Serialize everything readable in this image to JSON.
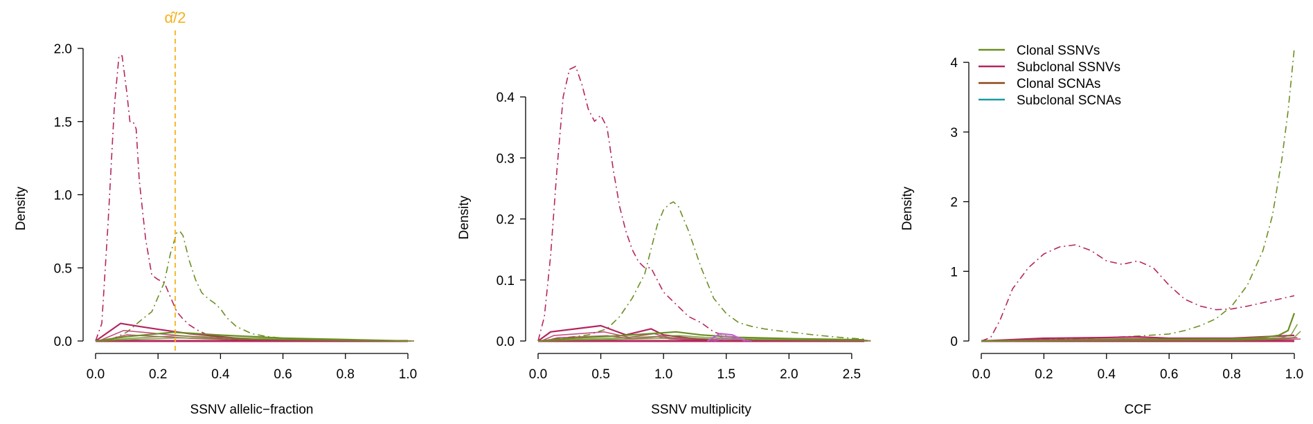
{
  "colors": {
    "clonal_ssnv": "#6b8e23",
    "subclonal_ssnv": "#b5245e",
    "clonal_scna": "#8b4513",
    "subclonal_scna": "#1a9aa0",
    "annotation": "#f5b21b",
    "extra_magenta": "#c060d0"
  },
  "legend": {
    "placement": "top-left of third panel",
    "items": [
      {
        "label": "Clonal SSNVs",
        "color_key": "clonal_ssnv"
      },
      {
        "label": "Subclonal SSNVs",
        "color_key": "subclonal_ssnv"
      },
      {
        "label": "Clonal SCNAs",
        "color_key": "clonal_scna"
      },
      {
        "label": "Subclonal SCNAs",
        "color_key": "subclonal_scna"
      }
    ]
  },
  "chart_data": [
    {
      "type": "line",
      "title": "",
      "xlabel": "SSNV allelic−fraction",
      "ylabel": "Density",
      "xlim": [
        0,
        1
      ],
      "ylim": [
        0,
        2.0
      ],
      "xticks": [
        0.0,
        0.2,
        0.4,
        0.6,
        0.8,
        1.0
      ],
      "xtick_labels": [
        "0.0",
        "0.2",
        "0.4",
        "0.6",
        "0.8",
        "1.0"
      ],
      "yticks": [
        0.0,
        0.5,
        1.0,
        1.5,
        2.0
      ],
      "ytick_labels": [
        "0.0",
        "0.5",
        "1.0",
        "1.5",
        "2.0"
      ],
      "annotation": {
        "label": "α̂/2",
        "x": 0.255
      },
      "series": [
        {
          "color_key": "subclonal_ssnv",
          "style": "dashdot",
          "x": [
            0.0,
            0.02,
            0.04,
            0.06,
            0.075,
            0.085,
            0.1,
            0.11,
            0.12,
            0.13,
            0.14,
            0.16,
            0.18,
            0.2,
            0.22,
            0.24,
            0.26,
            0.28,
            0.3,
            0.33,
            0.36,
            0.4,
            0.45,
            0.5,
            0.6,
            0.7,
            0.8,
            1.0
          ],
          "y": [
            0.0,
            0.12,
            0.8,
            1.6,
            1.95,
            1.95,
            1.7,
            1.5,
            1.5,
            1.45,
            1.1,
            0.7,
            0.45,
            0.42,
            0.4,
            0.3,
            0.2,
            0.15,
            0.11,
            0.07,
            0.04,
            0.02,
            0.01,
            0.0,
            0.0,
            0.0,
            0.0,
            0.0
          ]
        },
        {
          "color_key": "clonal_ssnv",
          "style": "dashdot",
          "x": [
            0.0,
            0.05,
            0.1,
            0.15,
            0.18,
            0.2,
            0.22,
            0.24,
            0.26,
            0.27,
            0.28,
            0.3,
            0.32,
            0.34,
            0.36,
            0.38,
            0.4,
            0.42,
            0.45,
            0.5,
            0.55,
            0.6,
            0.7,
            0.8,
            0.9,
            1.0
          ],
          "y": [
            0.0,
            0.01,
            0.06,
            0.15,
            0.2,
            0.3,
            0.4,
            0.6,
            0.74,
            0.75,
            0.72,
            0.55,
            0.42,
            0.33,
            0.29,
            0.26,
            0.22,
            0.16,
            0.1,
            0.05,
            0.03,
            0.02,
            0.01,
            0.005,
            0.0,
            0.0
          ]
        },
        {
          "color_key": "subclonal_ssnv",
          "style": "solid-band",
          "x": [
            0.0,
            0.08,
            0.14,
            0.2,
            0.3,
            0.4,
            0.5,
            1.0
          ],
          "y": [
            0.0,
            0.12,
            0.1,
            0.08,
            0.05,
            0.03,
            0.01,
            0.0
          ]
        },
        {
          "color_key": "clonal_ssnv",
          "style": "solid-band",
          "x": [
            0.0,
            0.1,
            0.25,
            0.4,
            0.6,
            0.8,
            1.0
          ],
          "y": [
            0.0,
            0.03,
            0.06,
            0.04,
            0.02,
            0.01,
            0.0
          ]
        }
      ]
    },
    {
      "type": "line",
      "title": "",
      "xlabel": "SSNV multiplicity",
      "ylabel": "Density",
      "xlim": [
        0,
        2.6
      ],
      "ylim": [
        0,
        0.45
      ],
      "xticks": [
        0.0,
        0.5,
        1.0,
        1.5,
        2.0,
        2.5
      ],
      "xtick_labels": [
        "0.0",
        "0.5",
        "1.0",
        "1.5",
        "2.0",
        "2.5"
      ],
      "yticks": [
        0.0,
        0.1,
        0.2,
        0.3,
        0.4
      ],
      "ytick_labels": [
        "0.0",
        "0.1",
        "0.2",
        "0.3",
        "0.4"
      ],
      "series": [
        {
          "color_key": "subclonal_ssnv",
          "style": "dashdot",
          "x": [
            0.0,
            0.05,
            0.1,
            0.15,
            0.2,
            0.25,
            0.3,
            0.35,
            0.4,
            0.45,
            0.5,
            0.55,
            0.6,
            0.65,
            0.7,
            0.75,
            0.8,
            0.85,
            0.9,
            0.95,
            1.0,
            1.1,
            1.2,
            1.3,
            1.4,
            1.5,
            1.6,
            1.7,
            1.8,
            2.0,
            2.6
          ],
          "y": [
            0.0,
            0.04,
            0.14,
            0.28,
            0.4,
            0.445,
            0.45,
            0.42,
            0.38,
            0.36,
            0.37,
            0.35,
            0.28,
            0.22,
            0.18,
            0.15,
            0.13,
            0.12,
            0.12,
            0.1,
            0.08,
            0.06,
            0.04,
            0.03,
            0.015,
            0.008,
            0.004,
            0.002,
            0.0,
            0.0,
            0.0
          ]
        },
        {
          "color_key": "clonal_ssnv",
          "style": "dashdot",
          "x": [
            0.0,
            0.2,
            0.4,
            0.55,
            0.65,
            0.75,
            0.85,
            0.9,
            0.95,
            1.0,
            1.05,
            1.08,
            1.12,
            1.2,
            1.3,
            1.4,
            1.5,
            1.6,
            1.7,
            1.8,
            1.9,
            2.0,
            2.2,
            2.4,
            2.6
          ],
          "y": [
            0.0,
            0.005,
            0.01,
            0.02,
            0.04,
            0.07,
            0.11,
            0.15,
            0.19,
            0.215,
            0.225,
            0.228,
            0.22,
            0.18,
            0.12,
            0.07,
            0.045,
            0.03,
            0.024,
            0.02,
            0.017,
            0.015,
            0.01,
            0.006,
            0.003
          ]
        },
        {
          "color_key": "subclonal_ssnv",
          "style": "solid-band",
          "x": [
            0.0,
            0.1,
            0.3,
            0.5,
            0.7,
            0.9,
            1.0,
            1.2,
            1.5,
            2.6
          ],
          "y": [
            0.0,
            0.015,
            0.02,
            0.025,
            0.01,
            0.02,
            0.01,
            0.005,
            0.0,
            0.0
          ]
        },
        {
          "color_key": "clonal_ssnv",
          "style": "solid-band",
          "x": [
            0.0,
            0.3,
            0.6,
            0.9,
            1.1,
            1.3,
            1.6,
            2.0,
            2.6
          ],
          "y": [
            0.0,
            0.005,
            0.008,
            0.012,
            0.015,
            0.01,
            0.006,
            0.004,
            0.002
          ]
        },
        {
          "color_key": "extra_magenta",
          "style": "solid-band",
          "x": [
            1.35,
            1.45,
            1.55,
            1.65
          ],
          "y": [
            0.0,
            0.012,
            0.01,
            0.0
          ]
        }
      ]
    },
    {
      "type": "line",
      "title": "",
      "xlabel": "CCF",
      "ylabel": "Density",
      "xlim": [
        0,
        1
      ],
      "ylim": [
        0,
        4.2
      ],
      "xticks": [
        0.0,
        0.2,
        0.4,
        0.6,
        0.8,
        1.0
      ],
      "xtick_labels": [
        "0.0",
        "0.2",
        "0.4",
        "0.6",
        "0.8",
        "1.0"
      ],
      "yticks": [
        0,
        1,
        2,
        3,
        4
      ],
      "ytick_labels": [
        "0",
        "1",
        "2",
        "3",
        "4"
      ],
      "series": [
        {
          "color_key": "subclonal_ssnv",
          "style": "dashdot",
          "x": [
            0.0,
            0.03,
            0.06,
            0.1,
            0.15,
            0.2,
            0.25,
            0.3,
            0.35,
            0.4,
            0.45,
            0.5,
            0.55,
            0.6,
            0.65,
            0.7,
            0.75,
            0.8,
            0.85,
            0.9,
            0.95,
            1.0
          ],
          "y": [
            0.0,
            0.05,
            0.3,
            0.75,
            1.05,
            1.25,
            1.35,
            1.38,
            1.3,
            1.15,
            1.1,
            1.15,
            1.05,
            0.8,
            0.6,
            0.5,
            0.45,
            0.46,
            0.5,
            0.55,
            0.6,
            0.65
          ]
        },
        {
          "color_key": "clonal_ssnv",
          "style": "dashdot",
          "x": [
            0.0,
            0.2,
            0.4,
            0.5,
            0.6,
            0.65,
            0.7,
            0.75,
            0.8,
            0.85,
            0.9,
            0.93,
            0.96,
            0.98,
            1.0
          ],
          "y": [
            0.0,
            0.02,
            0.05,
            0.07,
            0.1,
            0.15,
            0.22,
            0.32,
            0.5,
            0.8,
            1.3,
            1.8,
            2.6,
            3.3,
            4.2
          ]
        },
        {
          "color_key": "subclonal_ssnv",
          "style": "solid-band",
          "x": [
            0.0,
            0.2,
            0.4,
            0.5,
            0.6,
            0.8,
            1.0
          ],
          "y": [
            0.0,
            0.04,
            0.05,
            0.06,
            0.04,
            0.04,
            0.08
          ]
        },
        {
          "color_key": "clonal_ssnv",
          "style": "solid-band",
          "x": [
            0.0,
            0.4,
            0.8,
            0.9,
            0.95,
            0.98,
            1.0
          ],
          "y": [
            0.0,
            0.02,
            0.03,
            0.05,
            0.08,
            0.15,
            0.4
          ]
        }
      ]
    }
  ]
}
